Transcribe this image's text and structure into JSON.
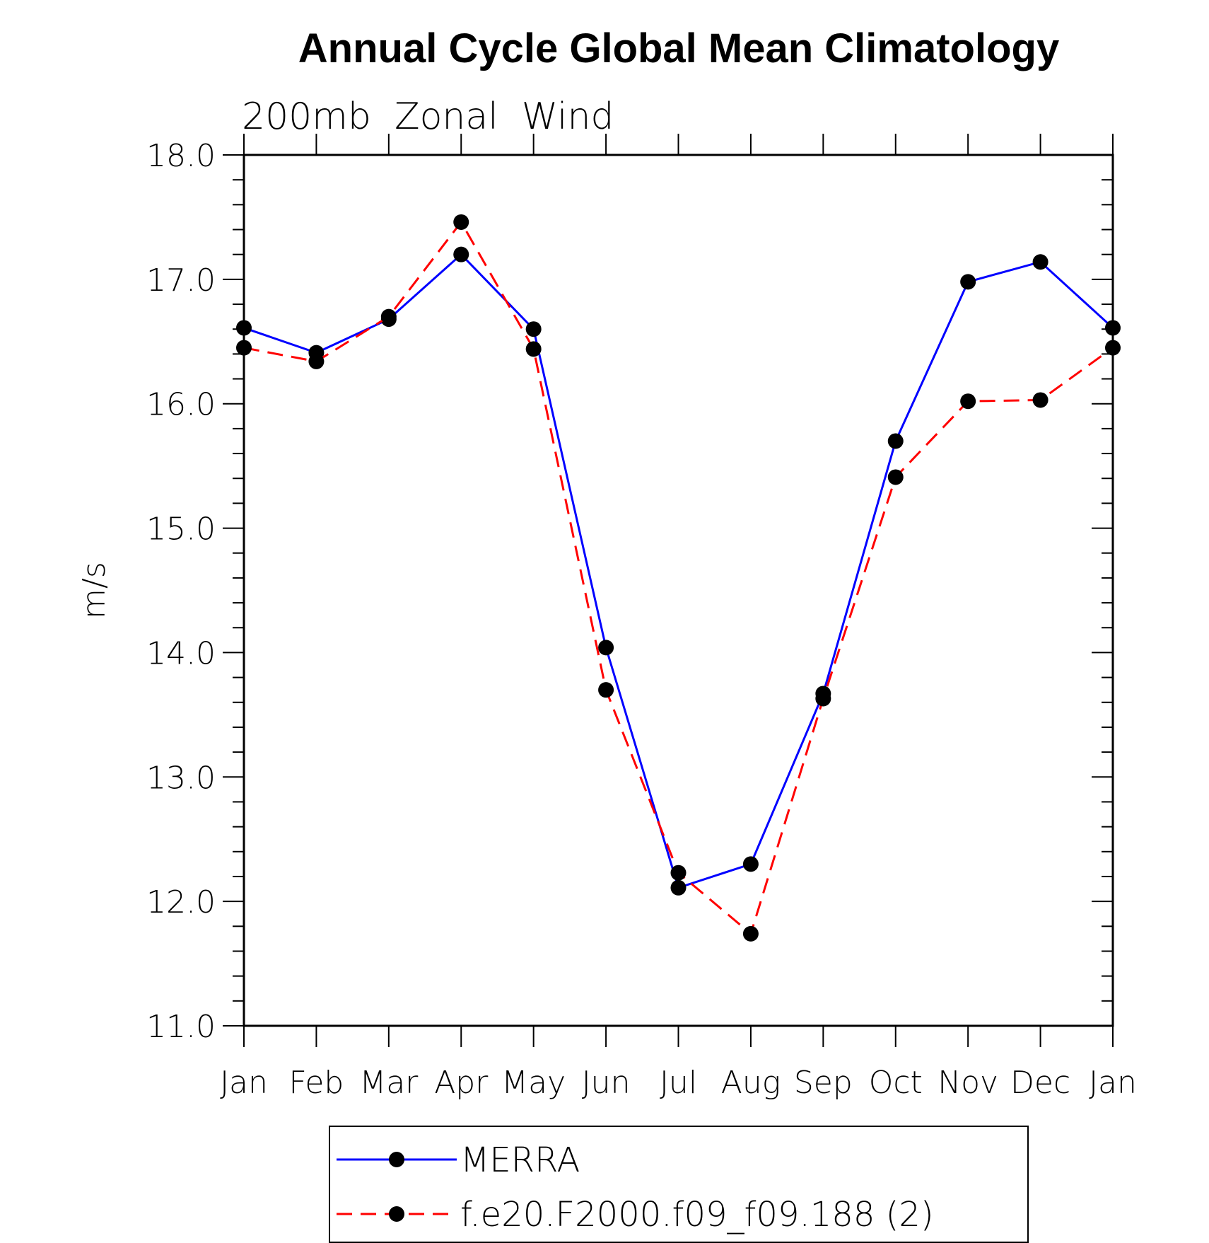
{
  "chart_data": {
    "type": "line",
    "title": "Annual Cycle Global Mean Climatology",
    "subtitle": "200mb  Zonal  Wind",
    "xlabel": "",
    "ylabel": "m/s",
    "categories": [
      "Jan",
      "Feb",
      "Mar",
      "Apr",
      "May",
      "Jun",
      "Jul",
      "Aug",
      "Sep",
      "Oct",
      "Nov",
      "Dec",
      "Jan"
    ],
    "ylim": [
      11.0,
      18.0
    ],
    "yticks": [
      "11.0",
      "12.0",
      "13.0",
      "14.0",
      "15.0",
      "16.0",
      "17.0",
      "18.0"
    ],
    "grid": false,
    "legend_position": "bottom",
    "series": [
      {
        "name": "MERRA",
        "color": "#0000ff",
        "dash": "solid",
        "values": [
          16.61,
          16.41,
          16.68,
          17.2,
          16.6,
          14.04,
          12.11,
          12.3,
          13.67,
          15.7,
          16.98,
          17.14,
          16.61
        ]
      },
      {
        "name": "f.e20.F2000.f09_f09.188 (2)",
        "color": "#ff0000",
        "dash": "dashed",
        "values": [
          16.45,
          16.34,
          16.7,
          17.46,
          16.44,
          13.7,
          12.23,
          11.74,
          13.63,
          15.41,
          16.02,
          16.03,
          16.45
        ]
      }
    ]
  }
}
